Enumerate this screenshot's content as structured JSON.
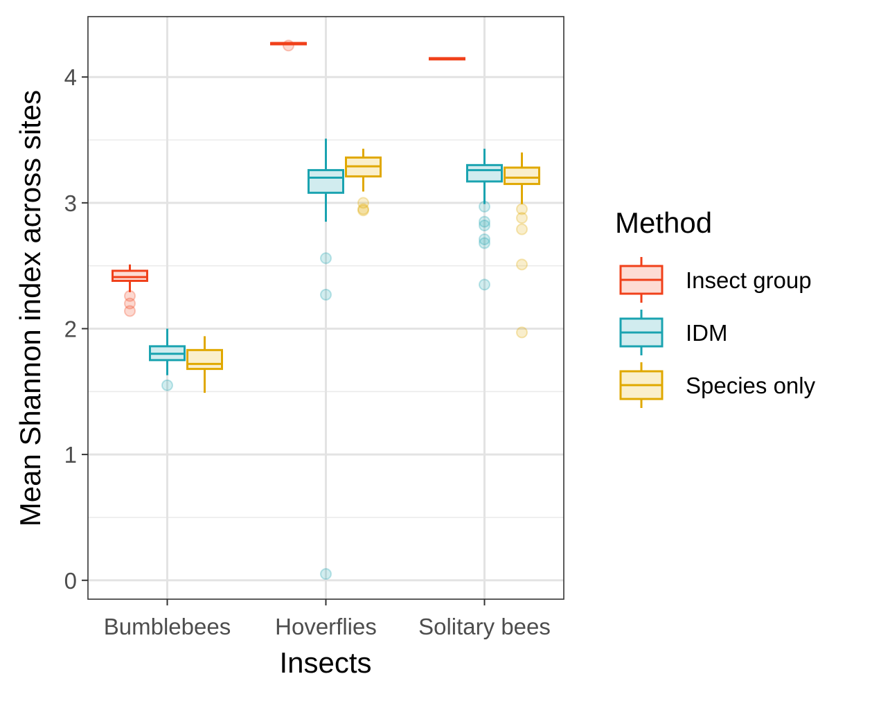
{
  "chart_data": {
    "type": "boxplot",
    "title": "",
    "xlabel": "Insects",
    "ylabel": "Mean Shannon index across sites",
    "categories": [
      "Bumblebees",
      "Hoverflies",
      "Solitary bees"
    ],
    "ylim": [
      -0.15,
      4.48
    ],
    "yticks": [
      0,
      1,
      2,
      3,
      4
    ],
    "y_minor_gridlines": [
      0.5,
      1.5,
      2.5,
      3.5
    ],
    "grid": true,
    "legend": {
      "title": "Method",
      "position": "right"
    },
    "series": [
      {
        "name": "Insect group",
        "color": "#F0401A",
        "fill": "#FDDCD4",
        "boxes": [
          {
            "category": "Bumblebees",
            "whisker_low": 2.29,
            "q1": 2.38,
            "median": 2.41,
            "q3": 2.46,
            "whisker_high": 2.51,
            "outliers": [
              2.26,
              2.2,
              2.14
            ]
          },
          {
            "category": "Hoverflies",
            "whisker_low": 4.26,
            "q1": 4.26,
            "median": 4.27,
            "q3": 4.27,
            "whisker_high": 4.27,
            "outliers": [
              4.25
            ]
          },
          {
            "category": "Solitary bees",
            "whisker_low": 4.14,
            "q1": 4.14,
            "median": 4.15,
            "q3": 4.15,
            "whisker_high": 4.15,
            "outliers": []
          }
        ]
      },
      {
        "name": "IDM",
        "color": "#1AA3B0",
        "fill": "#D1ECEF",
        "boxes": [
          {
            "category": "Bumblebees",
            "whisker_low": 1.63,
            "q1": 1.75,
            "median": 1.8,
            "q3": 1.86,
            "whisker_high": 2.0,
            "outliers": [
              1.55
            ]
          },
          {
            "category": "Hoverflies",
            "whisker_low": 2.85,
            "q1": 3.08,
            "median": 3.2,
            "q3": 3.26,
            "whisker_high": 3.51,
            "outliers": [
              2.56,
              2.27,
              0.05
            ]
          },
          {
            "category": "Solitary bees",
            "whisker_low": 2.99,
            "q1": 3.17,
            "median": 3.26,
            "q3": 3.3,
            "whisker_high": 3.43,
            "outliers": [
              2.97,
              2.85,
              2.82,
              2.71,
              2.68,
              2.35
            ]
          }
        ]
      },
      {
        "name": "Species only",
        "color": "#E0A800",
        "fill": "#FAEFCC",
        "boxes": [
          {
            "category": "Bumblebees",
            "whisker_low": 1.49,
            "q1": 1.68,
            "median": 1.72,
            "q3": 1.83,
            "whisker_high": 1.94,
            "outliers": []
          },
          {
            "category": "Hoverflies",
            "whisker_low": 3.09,
            "q1": 3.21,
            "median": 3.29,
            "q3": 3.36,
            "whisker_high": 3.43,
            "outliers": [
              3.0,
              2.95,
              2.94
            ]
          },
          {
            "category": "Solitary bees",
            "whisker_low": 2.99,
            "q1": 3.15,
            "median": 3.2,
            "q3": 3.28,
            "whisker_high": 3.4,
            "outliers": [
              2.95,
              2.88,
              2.79,
              2.51,
              1.97
            ]
          }
        ]
      }
    ]
  }
}
